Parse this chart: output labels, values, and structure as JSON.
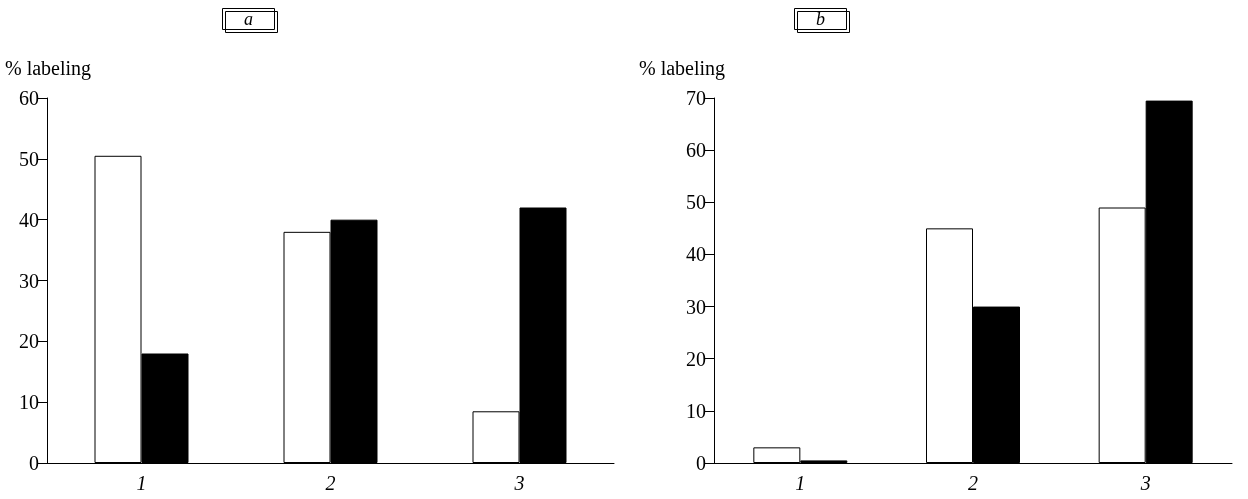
{
  "chart_data": [
    {
      "type": "bar",
      "title": "a",
      "ylabel": "% labeling",
      "categories": [
        "1",
        "2",
        "3"
      ],
      "series": [
        {
          "color": "#ffffff",
          "values": [
            50.5,
            38,
            8.5
          ]
        },
        {
          "color": "#000000",
          "values": [
            18,
            40,
            42
          ]
        }
      ],
      "ylim": [
        0,
        60
      ],
      "yticks": [
        0,
        10,
        20,
        30,
        40,
        50,
        60
      ]
    },
    {
      "type": "bar",
      "title": "b",
      "ylabel": "% labeling",
      "categories": [
        "1",
        "2",
        "3"
      ],
      "series": [
        {
          "color": "#ffffff",
          "values": [
            3,
            45,
            49
          ]
        },
        {
          "color": "#000000",
          "values": [
            0.5,
            30,
            69.5
          ]
        }
      ],
      "ylim": [
        0,
        70
      ],
      "yticks": [
        0,
        10,
        20,
        30,
        40,
        50,
        60,
        70
      ]
    }
  ]
}
